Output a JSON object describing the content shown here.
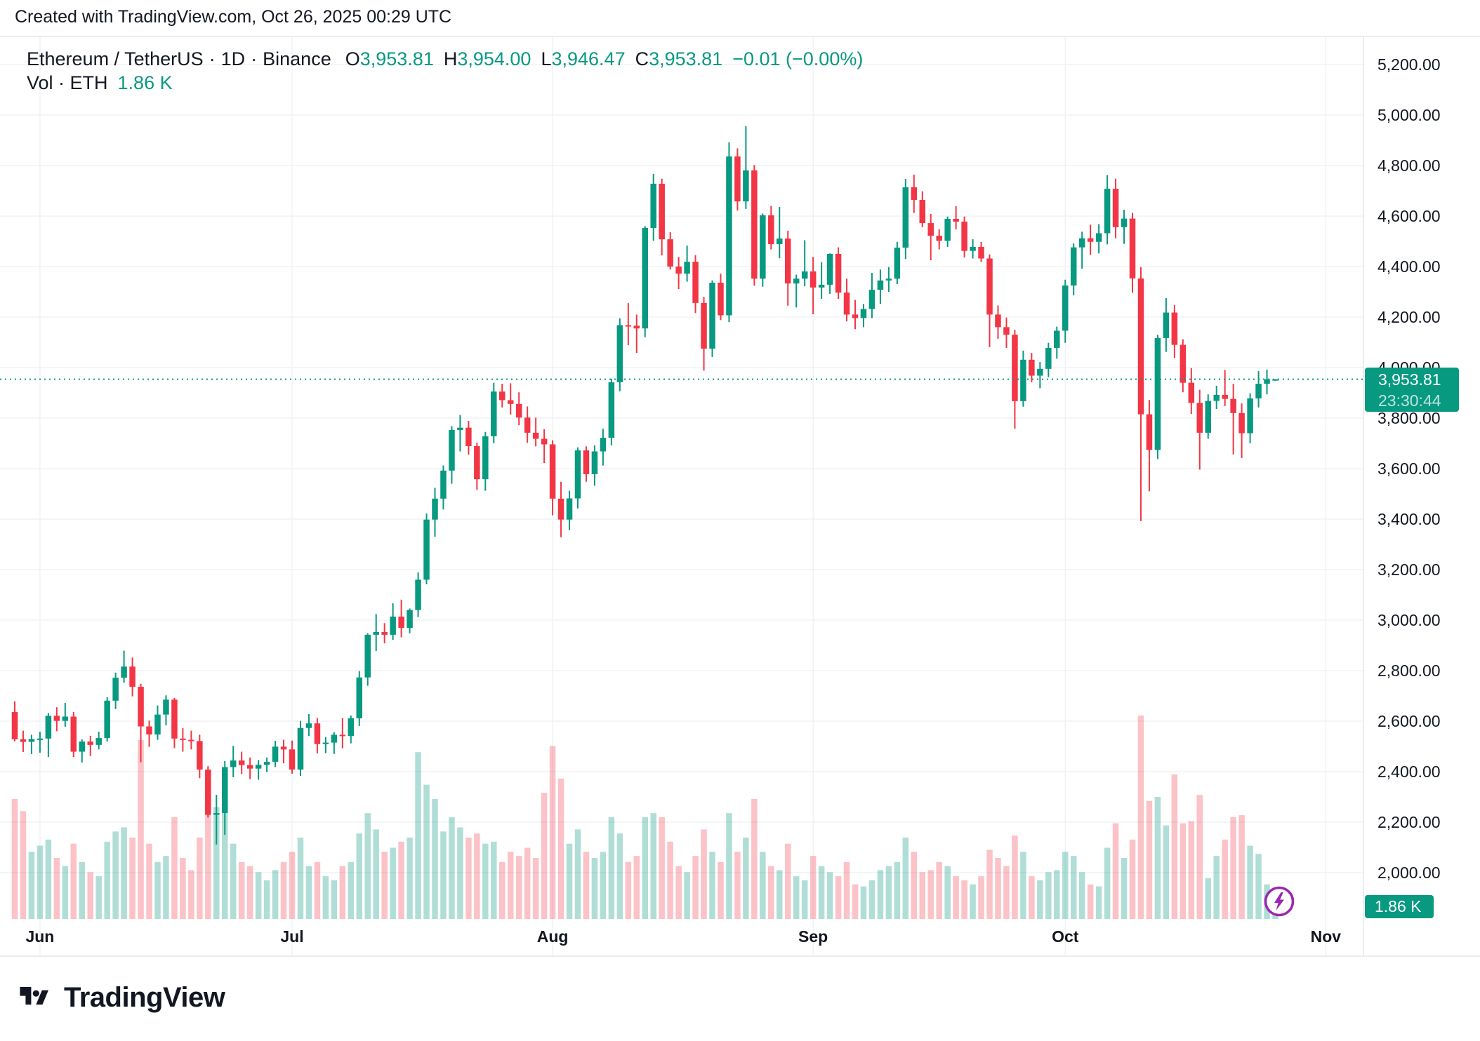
{
  "attribution": "Created with TradingView.com, Oct 26, 2025 00:29 UTC",
  "header": {
    "symbol": "Ethereum / TetherUS",
    "interval": "1D",
    "exchange": "Binance",
    "separator": "·",
    "ohlc": {
      "open_label": "O",
      "open": "3,953.81",
      "high_label": "H",
      "high": "3,954.00",
      "low_label": "L",
      "low": "3,946.47",
      "close_label": "C",
      "close": "3,953.81",
      "change": "−0.01 (−0.00%)"
    },
    "volume_label": "Vol · ETH",
    "volume_value": "1.86 K"
  },
  "price_scale": {
    "last_price": "3,953.81",
    "countdown": "23:30:44",
    "volume_badge": "1.86 K"
  },
  "footer": {
    "brand": "TradingView"
  },
  "colors": {
    "up": "#089981",
    "down": "#f23645",
    "up_volume": "rgba(8,153,129,0.32)",
    "down_volume": "rgba(242,54,69,0.30)",
    "badge": "#089981",
    "last_price_line": "#089981",
    "text": "#131722",
    "grid": "#f0f2f6",
    "border": "#e4e7ec",
    "flash": "#9c27b0"
  },
  "chart_data": {
    "type": "candlestick+volume",
    "title": "Ethereum / TetherUS · 1D · Binance",
    "symbol": "ETHUSDT",
    "timeframe": "1D",
    "start_date": "2025-05-29",
    "last_price": 3953.81,
    "last_volume_k_eth": 1.86,
    "y_axis": {
      "min": 2000,
      "max": 5200,
      "step": 200,
      "side": "right"
    },
    "x_axis": {
      "months": [
        {
          "label": "Jun",
          "index": 3
        },
        {
          "label": "Jul",
          "index": 33
        },
        {
          "label": "Aug",
          "index": 64
        },
        {
          "label": "Sep",
          "index": 95
        },
        {
          "label": "Oct",
          "index": 125
        },
        {
          "label": "Nov",
          "index": 156
        }
      ]
    },
    "grid": true,
    "series_note": "candles are [open,high,low,close,relative_volume_0_100], daily from 2025-05-29 to 2025-10-26",
    "candles": [
      [
        2636,
        2678,
        2520,
        2528,
        59
      ],
      [
        2528,
        2562,
        2478,
        2518,
        53
      ],
      [
        2518,
        2546,
        2470,
        2529,
        33
      ],
      [
        2529,
        2558,
        2475,
        2531,
        36
      ],
      [
        2531,
        2632,
        2458,
        2621,
        39
      ],
      [
        2621,
        2655,
        2560,
        2601,
        30
      ],
      [
        2601,
        2672,
        2578,
        2618,
        26
      ],
      [
        2618,
        2636,
        2458,
        2479,
        37
      ],
      [
        2479,
        2528,
        2436,
        2519,
        28
      ],
      [
        2519,
        2542,
        2462,
        2506,
        23
      ],
      [
        2506,
        2558,
        2488,
        2533,
        21
      ],
      [
        2533,
        2695,
        2519,
        2681,
        38
      ],
      [
        2681,
        2792,
        2648,
        2772,
        43
      ],
      [
        2772,
        2879,
        2752,
        2816,
        45
      ],
      [
        2816,
        2852,
        2698,
        2736,
        40
      ],
      [
        2736,
        2748,
        2437,
        2579,
        88
      ],
      [
        2579,
        2602,
        2498,
        2547,
        37
      ],
      [
        2547,
        2662,
        2526,
        2626,
        28
      ],
      [
        2626,
        2702,
        2583,
        2685,
        31
      ],
      [
        2685,
        2692,
        2493,
        2531,
        50
      ],
      [
        2531,
        2572,
        2479,
        2526,
        30
      ],
      [
        2526,
        2562,
        2488,
        2521,
        24
      ],
      [
        2521,
        2546,
        2374,
        2408,
        40
      ],
      [
        2408,
        2422,
        2218,
        2229,
        52
      ],
      [
        2229,
        2308,
        2111,
        2236,
        55
      ],
      [
        2236,
        2442,
        2150,
        2418,
        67
      ],
      [
        2418,
        2502,
        2378,
        2444,
        37
      ],
      [
        2444,
        2479,
        2390,
        2426,
        28
      ],
      [
        2426,
        2456,
        2370,
        2412,
        26
      ],
      [
        2412,
        2446,
        2368,
        2427,
        23
      ],
      [
        2427,
        2456,
        2398,
        2439,
        19
      ],
      [
        2439,
        2522,
        2418,
        2499,
        24
      ],
      [
        2499,
        2526,
        2433,
        2488,
        28
      ],
      [
        2488,
        2523,
        2392,
        2408,
        33
      ],
      [
        2408,
        2601,
        2383,
        2573,
        40
      ],
      [
        2573,
        2628,
        2541,
        2591,
        26
      ],
      [
        2591,
        2612,
        2472,
        2509,
        28
      ],
      [
        2509,
        2537,
        2473,
        2515,
        21
      ],
      [
        2515,
        2556,
        2470,
        2546,
        19
      ],
      [
        2546,
        2612,
        2492,
        2541,
        26
      ],
      [
        2541,
        2622,
        2512,
        2611,
        28
      ],
      [
        2611,
        2798,
        2581,
        2773,
        42
      ],
      [
        2773,
        2948,
        2740,
        2942,
        52
      ],
      [
        2942,
        3024,
        2878,
        2953,
        44
      ],
      [
        2953,
        2988,
        2908,
        2942,
        33
      ],
      [
        2942,
        3067,
        2922,
        3014,
        35
      ],
      [
        3014,
        3081,
        2932,
        2969,
        38
      ],
      [
        2969,
        3046,
        2948,
        3040,
        40
      ],
      [
        3040,
        3189,
        3012,
        3160,
        82
      ],
      [
        3160,
        3422,
        3142,
        3398,
        66
      ],
      [
        3398,
        3524,
        3330,
        3481,
        59
      ],
      [
        3481,
        3612,
        3438,
        3592,
        43
      ],
      [
        3592,
        3768,
        3540,
        3753,
        50
      ],
      [
        3753,
        3812,
        3668,
        3762,
        45
      ],
      [
        3762,
        3789,
        3655,
        3689,
        40
      ],
      [
        3689,
        3702,
        3516,
        3558,
        42
      ],
      [
        3558,
        3745,
        3512,
        3728,
        37
      ],
      [
        3728,
        3940,
        3700,
        3905,
        38
      ],
      [
        3905,
        3936,
        3842,
        3871,
        28
      ],
      [
        3871,
        3938,
        3814,
        3856,
        33
      ],
      [
        3856,
        3902,
        3772,
        3802,
        31
      ],
      [
        3802,
        3846,
        3702,
        3742,
        35
      ],
      [
        3742,
        3802,
        3688,
        3718,
        30
      ],
      [
        3718,
        3756,
        3622,
        3696,
        62
      ],
      [
        3696,
        3712,
        3415,
        3481,
        85
      ],
      [
        3481,
        3548,
        3328,
        3398,
        69
      ],
      [
        3398,
        3512,
        3356,
        3482,
        37
      ],
      [
        3482,
        3684,
        3442,
        3672,
        44
      ],
      [
        3672,
        3688,
        3548,
        3578,
        33
      ],
      [
        3578,
        3692,
        3532,
        3668,
        30
      ],
      [
        3668,
        3758,
        3612,
        3722,
        33
      ],
      [
        3722,
        3956,
        3692,
        3942,
        50
      ],
      [
        3942,
        4195,
        3906,
        4168,
        42
      ],
      [
        4168,
        4255,
        4089,
        4166,
        28
      ],
      [
        4166,
        4210,
        4058,
        4155,
        31
      ],
      [
        4155,
        4560,
        4120,
        4553,
        50
      ],
      [
        4553,
        4767,
        4502,
        4728,
        52
      ],
      [
        4728,
        4748,
        4444,
        4508,
        50
      ],
      [
        4508,
        4536,
        4388,
        4400,
        38
      ],
      [
        4400,
        4438,
        4311,
        4372,
        26
      ],
      [
        4372,
        4483,
        4340,
        4419,
        23
      ],
      [
        4419,
        4445,
        4216,
        4256,
        31
      ],
      [
        4256,
        4280,
        3988,
        4075,
        44
      ],
      [
        4075,
        4345,
        4042,
        4336,
        33
      ],
      [
        4336,
        4372,
        4188,
        4207,
        28
      ],
      [
        4207,
        4892,
        4180,
        4836,
        52
      ],
      [
        4836,
        4868,
        4622,
        4658,
        33
      ],
      [
        4658,
        4956,
        4628,
        4781,
        40
      ],
      [
        4781,
        4802,
        4324,
        4352,
        59
      ],
      [
        4352,
        4610,
        4320,
        4603,
        33
      ],
      [
        4603,
        4640,
        4468,
        4489,
        26
      ],
      [
        4489,
        4636,
        4433,
        4511,
        24
      ],
      [
        4511,
        4542,
        4245,
        4333,
        37
      ],
      [
        4333,
        4368,
        4238,
        4352,
        21
      ],
      [
        4352,
        4504,
        4322,
        4381,
        19
      ],
      [
        4381,
        4438,
        4211,
        4317,
        31
      ],
      [
        4317,
        4417,
        4272,
        4328,
        26
      ],
      [
        4328,
        4452,
        4292,
        4450,
        23
      ],
      [
        4450,
        4476,
        4272,
        4297,
        21
      ],
      [
        4297,
        4352,
        4183,
        4210,
        28
      ],
      [
        4210,
        4268,
        4152,
        4196,
        17
      ],
      [
        4196,
        4252,
        4160,
        4232,
        16
      ],
      [
        4232,
        4375,
        4196,
        4308,
        19
      ],
      [
        4308,
        4388,
        4252,
        4345,
        24
      ],
      [
        4345,
        4398,
        4300,
        4352,
        26
      ],
      [
        4352,
        4498,
        4330,
        4475,
        28
      ],
      [
        4475,
        4747,
        4430,
        4714,
        40
      ],
      [
        4714,
        4764,
        4612,
        4664,
        33
      ],
      [
        4664,
        4698,
        4556,
        4572,
        23
      ],
      [
        4572,
        4608,
        4425,
        4522,
        24
      ],
      [
        4522,
        4548,
        4468,
        4502,
        28
      ],
      [
        4502,
        4598,
        4478,
        4589,
        26
      ],
      [
        4589,
        4639,
        4547,
        4578,
        21
      ],
      [
        4578,
        4598,
        4436,
        4462,
        19
      ],
      [
        4462,
        4508,
        4432,
        4478,
        17
      ],
      [
        4478,
        4498,
        4418,
        4432,
        21
      ],
      [
        4432,
        4448,
        4081,
        4210,
        34
      ],
      [
        4210,
        4246,
        4114,
        4160,
        30
      ],
      [
        4160,
        4198,
        4078,
        4130,
        26
      ],
      [
        4130,
        4150,
        3758,
        3867,
        41
      ],
      [
        3867,
        4067,
        3845,
        4031,
        33
      ],
      [
        4031,
        4058,
        3942,
        3968,
        21
      ],
      [
        3968,
        4022,
        3918,
        3995,
        19
      ],
      [
        3995,
        4098,
        3962,
        4078,
        23
      ],
      [
        4078,
        4162,
        4035,
        4146,
        24
      ],
      [
        4146,
        4348,
        4098,
        4325,
        33
      ],
      [
        4325,
        4492,
        4286,
        4476,
        31
      ],
      [
        4476,
        4538,
        4392,
        4512,
        23
      ],
      [
        4512,
        4566,
        4446,
        4498,
        17
      ],
      [
        4498,
        4568,
        4452,
        4532,
        16
      ],
      [
        4532,
        4762,
        4488,
        4708,
        35
      ],
      [
        4708,
        4748,
        4512,
        4556,
        47
      ],
      [
        4556,
        4625,
        4490,
        4590,
        30
      ],
      [
        4590,
        4612,
        4296,
        4353,
        39
      ],
      [
        4353,
        4398,
        3392,
        3815,
        100
      ],
      [
        3815,
        3872,
        3510,
        3674,
        58
      ],
      [
        3674,
        4130,
        3638,
        4117,
        60
      ],
      [
        4117,
        4275,
        4062,
        4218,
        46
      ],
      [
        4218,
        4248,
        4038,
        4090,
        71
      ],
      [
        4090,
        4112,
        3902,
        3940,
        47
      ],
      [
        3940,
        3998,
        3816,
        3860,
        48
      ],
      [
        3860,
        3912,
        3596,
        3742,
        61
      ],
      [
        3742,
        3894,
        3718,
        3868,
        20
      ],
      [
        3868,
        3928,
        3836,
        3892,
        31
      ],
      [
        3892,
        3990,
        3848,
        3876,
        39
      ],
      [
        3876,
        3936,
        3656,
        3820,
        50
      ],
      [
        3820,
        3858,
        3642,
        3740,
        51
      ],
      [
        3740,
        3898,
        3700,
        3878,
        36
      ],
      [
        3878,
        3986,
        3842,
        3936,
        32
      ],
      [
        3936,
        3992,
        3894,
        3954,
        17
      ],
      [
        3953.81,
        3954.0,
        3946.47,
        3953.81,
        2
      ]
    ]
  }
}
